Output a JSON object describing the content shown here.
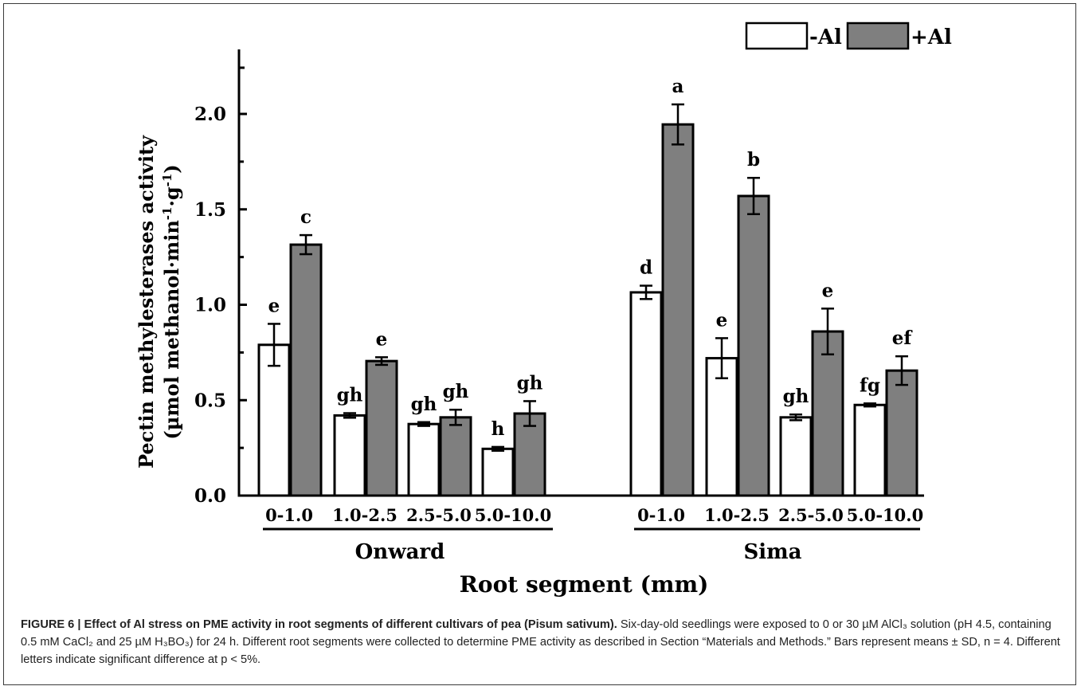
{
  "chart_data": {
    "type": "bar",
    "title": "",
    "ylabel_line1": "Pectin methylesterases activity",
    "ylabel_line2_prefix": "(µmol methanol·min",
    "ylabel_line2_mid": "·g",
    "ylabel_line2_suffix": ")",
    "ylabel_sup": "-1",
    "xlabel": "Root segment (mm)",
    "ylim": [
      0,
      2.3
    ],
    "yticks": [
      0.0,
      0.5,
      1.0,
      1.5,
      2.0
    ],
    "ytick_labels": [
      "0.0",
      "0.5",
      "1.0",
      "1.5",
      "2.0"
    ],
    "legend_position": "top-right",
    "grid": false,
    "series": [
      {
        "name": "-Al",
        "color": "#ffffff"
      },
      {
        "name": "+Al",
        "color": "#7f7f7f"
      }
    ],
    "groups": [
      {
        "name": "Onward",
        "categories": [
          "0-1.0",
          "1.0-2.5",
          "2.5-5.0",
          "5.0-10.0"
        ],
        "minus_al": {
          "values": [
            0.79,
            0.42,
            0.375,
            0.245
          ],
          "sd": [
            0.11,
            0.012,
            0.01,
            0.01
          ],
          "letters": [
            "e",
            "gh",
            "gh",
            "h"
          ]
        },
        "plus_al": {
          "values": [
            1.315,
            0.705,
            0.41,
            0.43
          ],
          "sd": [
            0.05,
            0.02,
            0.04,
            0.065
          ],
          "letters": [
            "c",
            "e",
            "gh",
            "gh"
          ]
        }
      },
      {
        "name": "Sima",
        "categories": [
          "0-1.0",
          "1.0-2.5",
          "2.5-5.0",
          "5.0-10.0"
        ],
        "minus_al": {
          "values": [
            1.065,
            0.72,
            0.41,
            0.475
          ],
          "sd": [
            0.035,
            0.105,
            0.015,
            0.008
          ],
          "letters": [
            "d",
            "e",
            "gh",
            "fg"
          ]
        },
        "plus_al": {
          "values": [
            1.945,
            1.57,
            0.86,
            0.655
          ],
          "sd": [
            0.105,
            0.095,
            0.12,
            0.075
          ],
          "letters": [
            "a",
            "b",
            "e",
            "ef"
          ]
        }
      }
    ]
  },
  "caption": {
    "lead": "FIGURE 6 | Effect of Al stress on PME activity in root segments of different cultivars of pea (Pisum sativum).",
    "body": "Six-day-old seedlings were exposed to 0 or 30 µM AlCl₃ solution (pH 4.5, containing 0.5 mM CaCl₂ and 25 µM H₃BO₃) for 24 h. Different root segments were collected to determine PME activity as described in Section “Materials and Methods.” Bars represent means ± SD, n = 4. Different letters indicate significant difference at p < 5%."
  }
}
